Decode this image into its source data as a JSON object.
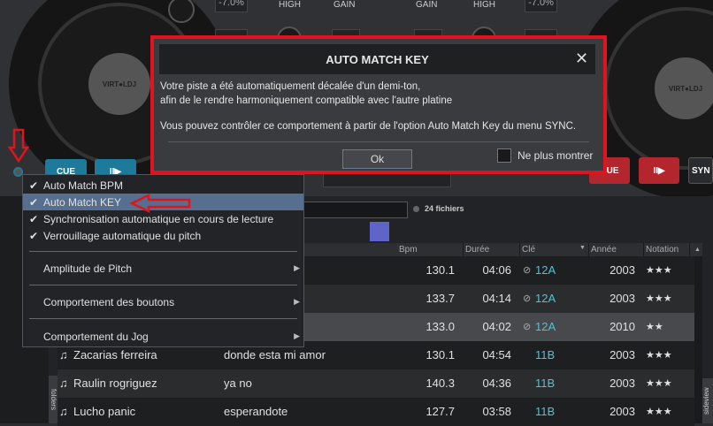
{
  "deck": {
    "pitch_left": "-7.0%",
    "pitch_right": "-7.0%",
    "labels": [
      "HIGH",
      "GAIN",
      "GAIN",
      "HIGH"
    ],
    "logo": "VIRTUAL DJ",
    "left_buttons": [
      "CUE",
      "II▶"
    ],
    "right_buttons": [
      "CUE",
      "II▶",
      "SYN"
    ],
    "colors": {
      "left_accent": "#1d7a9a",
      "right_accent": "#b3262e"
    }
  },
  "dialog": {
    "title": "AUTO MATCH KEY",
    "close_icon": "close-icon",
    "line1": "Votre piste a été automatiquement décalée d'un demi-ton,",
    "line2": "afin de le rendre harmoniquement compatible avec l'autre platine",
    "line3": "Vous pouvez contrôler ce comportement à partir de l'option Auto Match Key du menu SYNC.",
    "ok_label": "Ok",
    "checkbox_label": "Ne plus montrer",
    "checkbox_checked": false,
    "highlight_color": "#e0141e"
  },
  "menu": {
    "items": [
      {
        "label": "Auto Match BPM",
        "checked": true
      },
      {
        "label": "Auto Match KEY",
        "checked": true,
        "highlighted": true
      },
      {
        "label": "Synchronisation automatique en cours de lecture",
        "checked": true
      },
      {
        "label": "Verrouillage automatique du pitch",
        "checked": true
      },
      {
        "label": "Amplitude de Pitch",
        "submenu": true
      },
      {
        "label": "Comportement des boutons",
        "submenu": true
      },
      {
        "label": "Comportement du Jog",
        "submenu": true
      }
    ],
    "check_glyph": "✔",
    "submenu_glyph": "▶"
  },
  "browser": {
    "file_count": "24 fichiers",
    "columns": [
      "Bpm",
      "Durée",
      "Clé",
      "Année",
      "Notation"
    ],
    "folders_tab": "folders",
    "sideview_tab": "sideview",
    "rows": [
      {
        "artist": "",
        "title": "",
        "bpm": "130.1",
        "duration": "04:06",
        "key": "12A",
        "year": "2003",
        "rating": "★★★",
        "matched": true
      },
      {
        "artist": "",
        "title": "",
        "bpm": "133.7",
        "duration": "04:14",
        "key": "12A",
        "year": "2003",
        "rating": "★★★",
        "matched": true
      },
      {
        "artist": "",
        "title": "",
        "bpm": "133.0",
        "duration": "04:02",
        "key": "12A",
        "year": "2010",
        "rating": "★★",
        "matched": true
      },
      {
        "artist": "Zacarias ferreira",
        "title": "donde esta mi amor",
        "bpm": "130.1",
        "duration": "04:54",
        "key": "11B",
        "year": "2003",
        "rating": "★★★"
      },
      {
        "artist": "Raulin rogriguez",
        "title": "ya no",
        "bpm": "140.3",
        "duration": "04:36",
        "key": "11B",
        "year": "2003",
        "rating": "★★★"
      },
      {
        "artist": "Lucho panic",
        "title": "esperandote",
        "bpm": "127.7",
        "duration": "03:58",
        "key": "11B",
        "year": "2003",
        "rating": "★★★"
      }
    ]
  }
}
